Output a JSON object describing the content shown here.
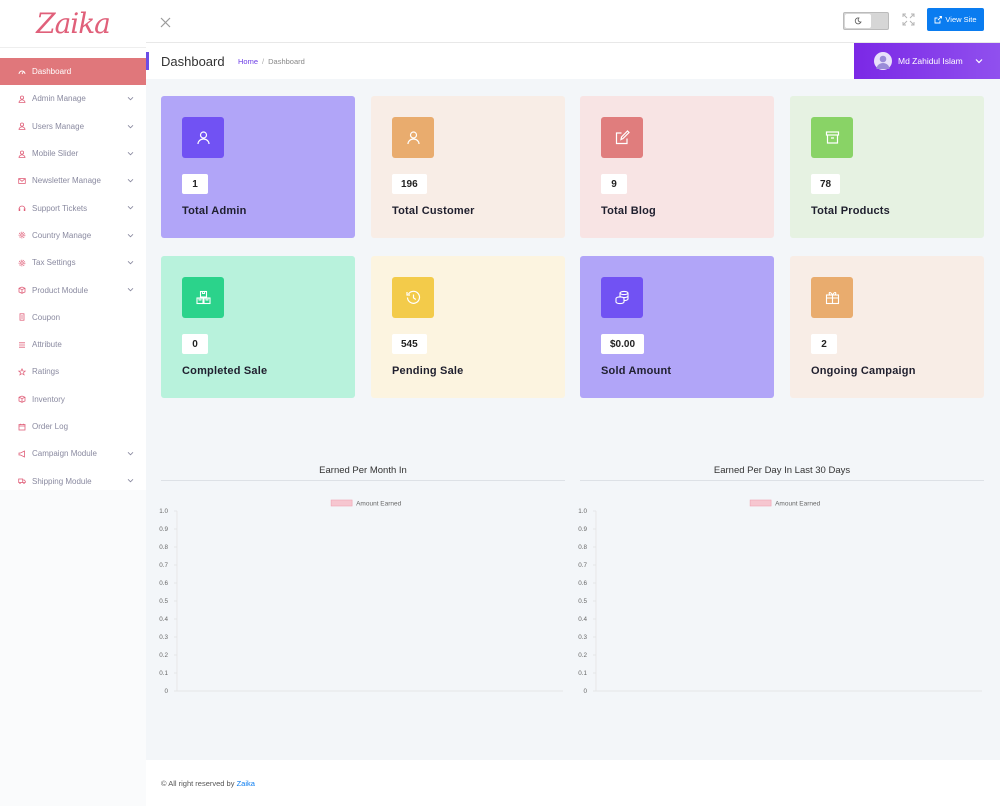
{
  "brand": "Zaika",
  "sidebar": {
    "items": [
      {
        "label": "Dashboard",
        "icon": "dashboard-icon",
        "expandable": false,
        "active": true
      },
      {
        "label": "Admin Manage",
        "icon": "user-icon",
        "expandable": true
      },
      {
        "label": "Users Manage",
        "icon": "user-icon",
        "expandable": true
      },
      {
        "label": "Mobile Slider",
        "icon": "user-icon",
        "expandable": true
      },
      {
        "label": "Newsletter Manage",
        "icon": "mail-icon",
        "expandable": true
      },
      {
        "label": "Support Tickets",
        "icon": "headset-icon",
        "expandable": true
      },
      {
        "label": "Country Manage",
        "icon": "gear-icon",
        "expandable": true
      },
      {
        "label": "Tax Settings",
        "icon": "gear-icon",
        "expandable": true
      },
      {
        "label": "Product Module",
        "icon": "box-icon",
        "expandable": true
      },
      {
        "label": "Coupon",
        "icon": "coupon-icon",
        "expandable": false
      },
      {
        "label": "Attribute",
        "icon": "list-icon",
        "expandable": false
      },
      {
        "label": "Ratings",
        "icon": "star-icon",
        "expandable": false
      },
      {
        "label": "Inventory",
        "icon": "box-icon",
        "expandable": false
      },
      {
        "label": "Order Log",
        "icon": "calendar-icon",
        "expandable": false
      },
      {
        "label": "Campaign Module",
        "icon": "megaphone-icon",
        "expandable": true
      },
      {
        "label": "Shipping Module",
        "icon": "truck-icon",
        "expandable": true
      }
    ]
  },
  "topbar": {
    "view_site_label": "View Site"
  },
  "header": {
    "title": "Dashboard",
    "breadcrumb_home": "Home",
    "breadcrumb_sep": "/",
    "breadcrumb_current": "Dashboard",
    "user_name": "Md Zahidul Islam"
  },
  "cards": [
    {
      "value": "1",
      "label": "Total Admin",
      "bg": "#b1a5f8",
      "icon_bg": "#7152f3",
      "icon": "user-icon"
    },
    {
      "value": "196",
      "label": "Total Customer",
      "bg": "#f8ede6",
      "icon_bg": "#e9ac6e",
      "icon": "user-icon"
    },
    {
      "value": "9",
      "label": "Total Blog",
      "bg": "#f8e4e4",
      "icon_bg": "#e07d7d",
      "icon": "edit-icon"
    },
    {
      "value": "78",
      "label": "Total Products",
      "bg": "#e6f2e2",
      "icon_bg": "#89d366",
      "icon": "archive-icon"
    },
    {
      "value": "0",
      "label": "Completed Sale",
      "bg": "#b8f2dc",
      "icon_bg": "#2bd38b",
      "icon": "boxes-icon"
    },
    {
      "value": "545",
      "label": "Pending Sale",
      "bg": "#fcf4e0",
      "icon_bg": "#f3cb4a",
      "icon": "history-icon"
    },
    {
      "value": "$0.00",
      "label": "Sold Amount",
      "bg": "#b1a5f8",
      "icon_bg": "#7152f3",
      "icon": "coins-icon"
    },
    {
      "value": "2",
      "label": "Ongoing Campaign",
      "bg": "#f8ede6",
      "icon_bg": "#e9ac6e",
      "icon": "gift-icon"
    }
  ],
  "chart_data": [
    {
      "type": "bar",
      "title": "Earned Per Month In",
      "series": [
        {
          "name": "Amount Earned",
          "values": []
        }
      ],
      "categories": [],
      "ylim": [
        0,
        1
      ],
      "yticks": [
        "1.0",
        "0.9",
        "0.8",
        "0.7",
        "0.6",
        "0.5",
        "0.4",
        "0.3",
        "0.2",
        "0.1",
        "0"
      ],
      "legend": "top-center",
      "color": "#f6c6d0"
    },
    {
      "type": "bar",
      "title": "Earned Per Day In Last 30 Days",
      "series": [
        {
          "name": "Amount Earned",
          "values": []
        }
      ],
      "categories": [],
      "ylim": [
        0,
        1
      ],
      "yticks": [
        "1.0",
        "0.9",
        "0.8",
        "0.7",
        "0.6",
        "0.5",
        "0.4",
        "0.3",
        "0.2",
        "0.1",
        "0"
      ],
      "legend": "top-center",
      "color": "#f6c6d0"
    }
  ],
  "footer": {
    "text": "© All right reserved by",
    "brand": "Zaika"
  }
}
